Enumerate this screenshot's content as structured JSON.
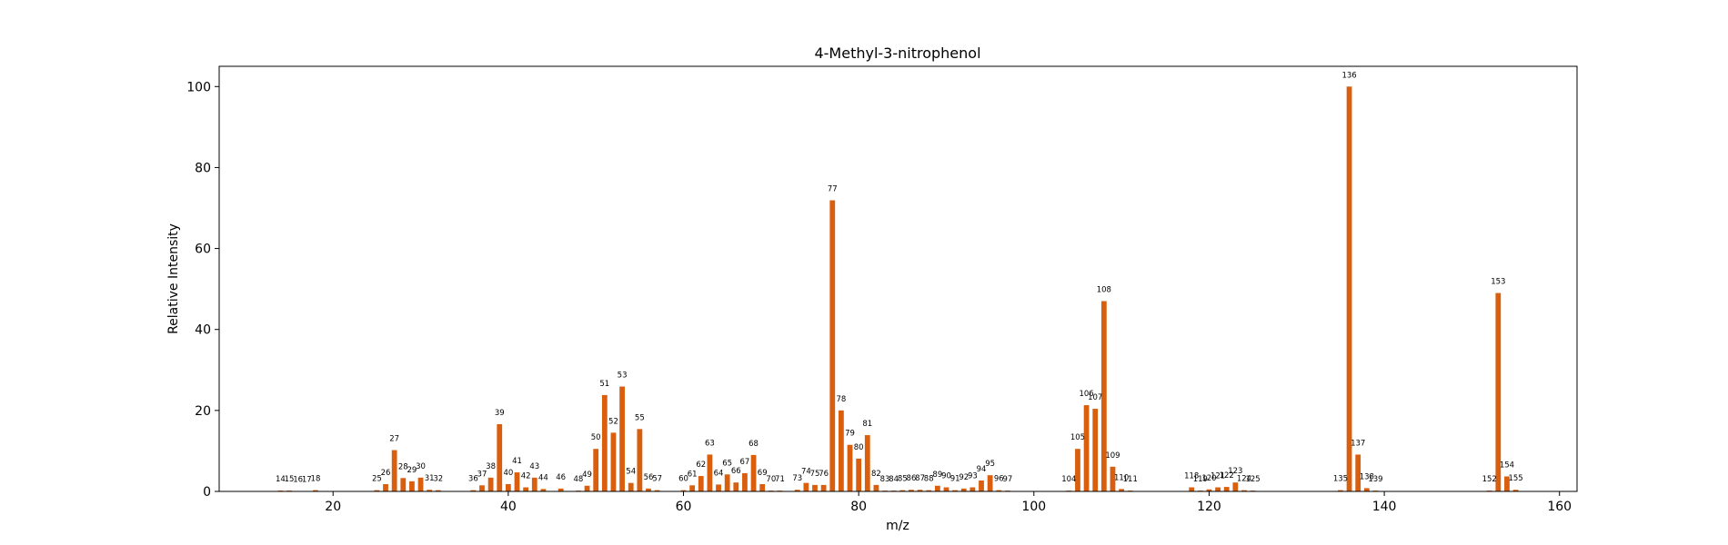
{
  "chart_data": {
    "type": "bar",
    "title": "4-Methyl-3-nitrophenol",
    "xlabel": "m/z",
    "ylabel": "Relative Intensity",
    "xlim": [
      7,
      162
    ],
    "ylim": [
      0,
      105
    ],
    "xticks": [
      20,
      40,
      60,
      80,
      100,
      120,
      140,
      160
    ],
    "yticks": [
      0,
      20,
      40,
      60,
      80,
      100
    ],
    "bar_color": "#d95f0e",
    "grid": false,
    "points": [
      {
        "x": 14,
        "y": 0.2
      },
      {
        "x": 15,
        "y": 0.2
      },
      {
        "x": 16,
        "y": 0.1
      },
      {
        "x": 17,
        "y": 0.1
      },
      {
        "x": 18,
        "y": 0.3
      },
      {
        "x": 25,
        "y": 0.3
      },
      {
        "x": 26,
        "y": 1.8
      },
      {
        "x": 27,
        "y": 10.2
      },
      {
        "x": 28,
        "y": 3.3
      },
      {
        "x": 29,
        "y": 2.5
      },
      {
        "x": 30,
        "y": 3.4
      },
      {
        "x": 31,
        "y": 0.4
      },
      {
        "x": 32,
        "y": 0.3
      },
      {
        "x": 36,
        "y": 0.3
      },
      {
        "x": 37,
        "y": 1.5
      },
      {
        "x": 38,
        "y": 3.4
      },
      {
        "x": 39,
        "y": 16.6
      },
      {
        "x": 40,
        "y": 1.8
      },
      {
        "x": 41,
        "y": 4.7
      },
      {
        "x": 42,
        "y": 1.0
      },
      {
        "x": 43,
        "y": 3.4
      },
      {
        "x": 44,
        "y": 0.6
      },
      {
        "x": 46,
        "y": 0.7
      },
      {
        "x": 48,
        "y": 0.2
      },
      {
        "x": 49,
        "y": 1.4
      },
      {
        "x": 50,
        "y": 10.5
      },
      {
        "x": 51,
        "y": 23.8
      },
      {
        "x": 52,
        "y": 14.5
      },
      {
        "x": 53,
        "y": 25.9
      },
      {
        "x": 54,
        "y": 2.1
      },
      {
        "x": 55,
        "y": 15.4
      },
      {
        "x": 56,
        "y": 0.7
      },
      {
        "x": 57,
        "y": 0.3
      },
      {
        "x": 60,
        "y": 0.3
      },
      {
        "x": 61,
        "y": 1.5
      },
      {
        "x": 62,
        "y": 3.8
      },
      {
        "x": 63,
        "y": 9.1
      },
      {
        "x": 64,
        "y": 1.7
      },
      {
        "x": 65,
        "y": 4.2
      },
      {
        "x": 66,
        "y": 2.2
      },
      {
        "x": 67,
        "y": 4.5
      },
      {
        "x": 68,
        "y": 9.0
      },
      {
        "x": 69,
        "y": 1.8
      },
      {
        "x": 70,
        "y": 0.2
      },
      {
        "x": 71,
        "y": 0.2
      },
      {
        "x": 73,
        "y": 0.4
      },
      {
        "x": 74,
        "y": 2.1
      },
      {
        "x": 75,
        "y": 1.6
      },
      {
        "x": 76,
        "y": 1.6
      },
      {
        "x": 77,
        "y": 71.9
      },
      {
        "x": 78,
        "y": 20.0
      },
      {
        "x": 79,
        "y": 11.5
      },
      {
        "x": 80,
        "y": 8.1
      },
      {
        "x": 81,
        "y": 13.9
      },
      {
        "x": 82,
        "y": 1.6
      },
      {
        "x": 83,
        "y": 0.2
      },
      {
        "x": 84,
        "y": 0.2
      },
      {
        "x": 85,
        "y": 0.3
      },
      {
        "x": 86,
        "y": 0.4
      },
      {
        "x": 87,
        "y": 0.4
      },
      {
        "x": 88,
        "y": 0.3
      },
      {
        "x": 89,
        "y": 1.4
      },
      {
        "x": 90,
        "y": 1.0
      },
      {
        "x": 91,
        "y": 0.3
      },
      {
        "x": 92,
        "y": 0.7
      },
      {
        "x": 93,
        "y": 1.0
      },
      {
        "x": 94,
        "y": 2.7
      },
      {
        "x": 95,
        "y": 4.0
      },
      {
        "x": 96,
        "y": 0.3
      },
      {
        "x": 97,
        "y": 0.2
      },
      {
        "x": 104,
        "y": 0.2
      },
      {
        "x": 105,
        "y": 10.5
      },
      {
        "x": 106,
        "y": 21.3
      },
      {
        "x": 107,
        "y": 20.4
      },
      {
        "x": 108,
        "y": 47.0
      },
      {
        "x": 109,
        "y": 6.1
      },
      {
        "x": 110,
        "y": 0.6
      },
      {
        "x": 111,
        "y": 0.2
      },
      {
        "x": 118,
        "y": 1.0
      },
      {
        "x": 119,
        "y": 0.2
      },
      {
        "x": 120,
        "y": 0.5
      },
      {
        "x": 121,
        "y": 1.0
      },
      {
        "x": 122,
        "y": 1.1
      },
      {
        "x": 123,
        "y": 2.2
      },
      {
        "x": 124,
        "y": 0.3
      },
      {
        "x": 125,
        "y": 0.2
      },
      {
        "x": 135,
        "y": 0.3
      },
      {
        "x": 136,
        "y": 100.0
      },
      {
        "x": 137,
        "y": 9.1
      },
      {
        "x": 138,
        "y": 0.8
      },
      {
        "x": 139,
        "y": 0.2
      },
      {
        "x": 152,
        "y": 0.2
      },
      {
        "x": 153,
        "y": 49.0
      },
      {
        "x": 154,
        "y": 3.7
      },
      {
        "x": 155,
        "y": 0.4
      }
    ]
  }
}
